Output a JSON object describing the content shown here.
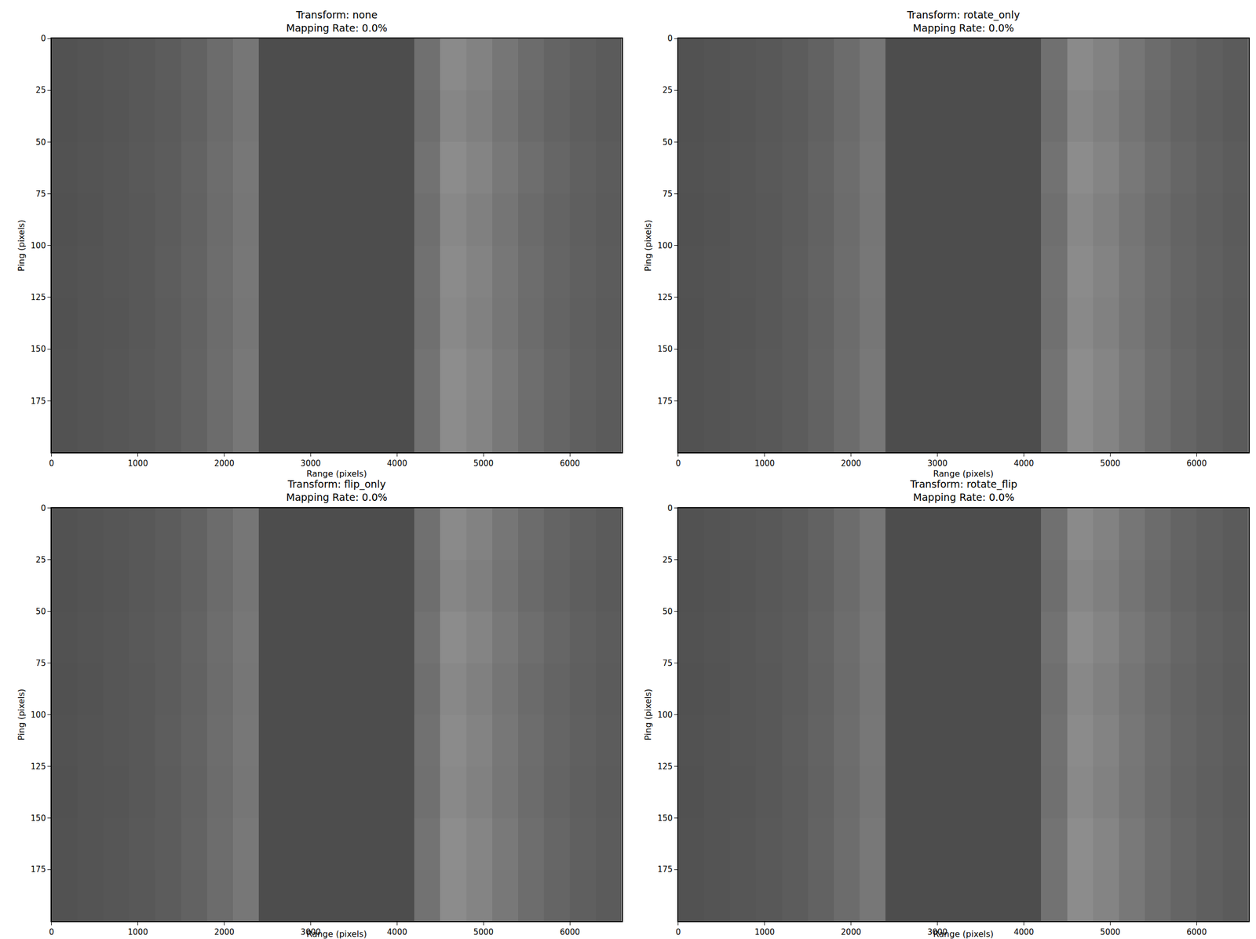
{
  "chart_data": [
    {
      "type": "heatmap",
      "title": "Transform: none\nMapping Rate: 0.0%",
      "x_label": "Range (pixels)",
      "y_label": "Ping (pixels)",
      "x_bins": [
        0,
        300,
        600,
        900,
        1200,
        1500,
        1800,
        2100,
        2400,
        2700,
        3000,
        3300,
        3600,
        3900,
        4200,
        4500,
        4800,
        5100,
        5400,
        5700,
        6000,
        6300,
        6600
      ],
      "y_bins": [
        0,
        25,
        50,
        75,
        100,
        125,
        150,
        175,
        200
      ],
      "z": [
        [
          82,
          84,
          86,
          88,
          92,
          98,
          108,
          118,
          77,
          77,
          77,
          77,
          77,
          77,
          112,
          138,
          130,
          118,
          108,
          100,
          95,
          91
        ],
        [
          81,
          83,
          85,
          88,
          91,
          97,
          107,
          117,
          77,
          77,
          77,
          77,
          77,
          77,
          110,
          134,
          127,
          116,
          106,
          99,
          94,
          90
        ],
        [
          82,
          84,
          86,
          89,
          92,
          99,
          109,
          119,
          77,
          77,
          77,
          77,
          77,
          77,
          114,
          140,
          132,
          120,
          110,
          102,
          96,
          92
        ],
        [
          81,
          83,
          86,
          88,
          92,
          98,
          108,
          118,
          77,
          77,
          77,
          77,
          77,
          77,
          111,
          136,
          128,
          117,
          107,
          100,
          95,
          91
        ],
        [
          82,
          84,
          86,
          88,
          93,
          99,
          109,
          119,
          77,
          77,
          77,
          77,
          77,
          77,
          113,
          139,
          131,
          119,
          109,
          101,
          96,
          92
        ],
        [
          81,
          84,
          85,
          88,
          92,
          98,
          108,
          118,
          77,
          77,
          77,
          77,
          77,
          77,
          112,
          137,
          129,
          118,
          108,
          100,
          95,
          91
        ],
        [
          82,
          84,
          86,
          89,
          92,
          99,
          109,
          120,
          77,
          77,
          77,
          77,
          77,
          77,
          115,
          141,
          133,
          121,
          110,
          102,
          96,
          92
        ],
        [
          82,
          84,
          86,
          88,
          92,
          98,
          108,
          119,
          77,
          77,
          77,
          77,
          77,
          77,
          114,
          140,
          132,
          120,
          109,
          101,
          95,
          91
        ]
      ],
      "zlim": [
        0,
        255
      ],
      "xlim": [
        0,
        6600
      ],
      "ylim": [
        200,
        0
      ],
      "xticks": [
        0,
        1000,
        2000,
        3000,
        4000,
        5000,
        6000
      ],
      "yticks": [
        0,
        25,
        50,
        75,
        100,
        125,
        150,
        175
      ]
    },
    {
      "type": "heatmap",
      "title": "Transform: rotate_only\nMapping Rate: 0.0%",
      "x_label": "Range (pixels)",
      "y_label": "Ping (pixels)",
      "x_bins": [
        0,
        300,
        600,
        900,
        1200,
        1500,
        1800,
        2100,
        2400,
        2700,
        3000,
        3300,
        3600,
        3900,
        4200,
        4500,
        4800,
        5100,
        5400,
        5700,
        6000,
        6300,
        6600
      ],
      "y_bins": [
        0,
        25,
        50,
        75,
        100,
        125,
        150,
        175,
        200
      ],
      "z": [
        [
          82,
          84,
          86,
          88,
          92,
          98,
          108,
          118,
          77,
          77,
          77,
          77,
          77,
          77,
          112,
          138,
          130,
          118,
          108,
          100,
          95,
          91
        ],
        [
          81,
          83,
          85,
          88,
          91,
          97,
          107,
          117,
          77,
          77,
          77,
          77,
          77,
          77,
          110,
          134,
          127,
          116,
          106,
          99,
          94,
          90
        ],
        [
          82,
          84,
          86,
          89,
          92,
          99,
          109,
          119,
          77,
          77,
          77,
          77,
          77,
          77,
          114,
          140,
          132,
          120,
          110,
          102,
          96,
          92
        ],
        [
          81,
          83,
          86,
          88,
          92,
          98,
          108,
          118,
          77,
          77,
          77,
          77,
          77,
          77,
          111,
          136,
          128,
          117,
          107,
          100,
          95,
          91
        ],
        [
          82,
          84,
          86,
          88,
          93,
          99,
          109,
          119,
          77,
          77,
          77,
          77,
          77,
          77,
          113,
          139,
          131,
          119,
          109,
          101,
          96,
          92
        ],
        [
          81,
          84,
          85,
          88,
          92,
          98,
          108,
          118,
          77,
          77,
          77,
          77,
          77,
          77,
          112,
          137,
          129,
          118,
          108,
          100,
          95,
          91
        ],
        [
          82,
          84,
          86,
          89,
          92,
          99,
          109,
          120,
          77,
          77,
          77,
          77,
          77,
          77,
          115,
          141,
          133,
          121,
          110,
          102,
          96,
          92
        ],
        [
          82,
          84,
          86,
          88,
          92,
          98,
          108,
          119,
          77,
          77,
          77,
          77,
          77,
          77,
          114,
          140,
          132,
          120,
          109,
          101,
          95,
          91
        ]
      ],
      "zlim": [
        0,
        255
      ],
      "xlim": [
        0,
        6600
      ],
      "ylim": [
        200,
        0
      ],
      "xticks": [
        0,
        1000,
        2000,
        3000,
        4000,
        5000,
        6000
      ],
      "yticks": [
        0,
        25,
        50,
        75,
        100,
        125,
        150,
        175
      ]
    },
    {
      "type": "heatmap",
      "title": "Transform: flip_only\nMapping Rate: 0.0%",
      "x_label": "Range (pixels)",
      "y_label": "Ping (pixels)",
      "x_bins": [
        0,
        300,
        600,
        900,
        1200,
        1500,
        1800,
        2100,
        2400,
        2700,
        3000,
        3300,
        3600,
        3900,
        4200,
        4500,
        4800,
        5100,
        5400,
        5700,
        6000,
        6300,
        6600
      ],
      "y_bins": [
        0,
        25,
        50,
        75,
        100,
        125,
        150,
        175,
        200
      ],
      "z": [
        [
          82,
          84,
          86,
          88,
          92,
          98,
          108,
          118,
          77,
          77,
          77,
          77,
          77,
          77,
          112,
          138,
          130,
          118,
          108,
          100,
          95,
          91
        ],
        [
          81,
          83,
          85,
          88,
          91,
          97,
          107,
          117,
          77,
          77,
          77,
          77,
          77,
          77,
          110,
          134,
          127,
          116,
          106,
          99,
          94,
          90
        ],
        [
          82,
          84,
          86,
          89,
          92,
          99,
          109,
          119,
          77,
          77,
          77,
          77,
          77,
          77,
          114,
          140,
          132,
          120,
          110,
          102,
          96,
          92
        ],
        [
          81,
          83,
          86,
          88,
          92,
          98,
          108,
          118,
          77,
          77,
          77,
          77,
          77,
          77,
          111,
          136,
          128,
          117,
          107,
          100,
          95,
          91
        ],
        [
          82,
          84,
          86,
          88,
          93,
          99,
          109,
          119,
          77,
          77,
          77,
          77,
          77,
          77,
          113,
          139,
          131,
          119,
          109,
          101,
          96,
          92
        ],
        [
          81,
          84,
          85,
          88,
          92,
          98,
          108,
          118,
          77,
          77,
          77,
          77,
          77,
          77,
          112,
          137,
          129,
          118,
          108,
          100,
          95,
          91
        ],
        [
          82,
          84,
          86,
          89,
          92,
          99,
          109,
          120,
          77,
          77,
          77,
          77,
          77,
          77,
          115,
          141,
          133,
          121,
          110,
          102,
          96,
          92
        ],
        [
          82,
          84,
          86,
          88,
          92,
          98,
          108,
          119,
          77,
          77,
          77,
          77,
          77,
          77,
          114,
          140,
          132,
          120,
          109,
          101,
          95,
          91
        ]
      ],
      "zlim": [
        0,
        255
      ],
      "xlim": [
        0,
        6600
      ],
      "ylim": [
        200,
        0
      ],
      "xticks": [
        0,
        1000,
        2000,
        3000,
        4000,
        5000,
        6000
      ],
      "yticks": [
        0,
        25,
        50,
        75,
        100,
        125,
        150,
        175
      ]
    },
    {
      "type": "heatmap",
      "title": "Transform: rotate_flip\nMapping Rate: 0.0%",
      "x_label": "Range (pixels)",
      "y_label": "Ping (pixels)",
      "x_bins": [
        0,
        300,
        600,
        900,
        1200,
        1500,
        1800,
        2100,
        2400,
        2700,
        3000,
        3300,
        3600,
        3900,
        4200,
        4500,
        4800,
        5100,
        5400,
        5700,
        6000,
        6300,
        6600
      ],
      "y_bins": [
        0,
        25,
        50,
        75,
        100,
        125,
        150,
        175,
        200
      ],
      "z": [
        [
          82,
          84,
          86,
          88,
          92,
          98,
          108,
          118,
          77,
          77,
          77,
          77,
          77,
          77,
          112,
          138,
          130,
          118,
          108,
          100,
          95,
          91
        ],
        [
          81,
          83,
          85,
          88,
          91,
          97,
          107,
          117,
          77,
          77,
          77,
          77,
          77,
          77,
          110,
          134,
          127,
          116,
          106,
          99,
          94,
          90
        ],
        [
          82,
          84,
          86,
          89,
          92,
          99,
          109,
          119,
          77,
          77,
          77,
          77,
          77,
          77,
          114,
          140,
          132,
          120,
          110,
          102,
          96,
          92
        ],
        [
          81,
          83,
          86,
          88,
          92,
          98,
          108,
          118,
          77,
          77,
          77,
          77,
          77,
          77,
          111,
          136,
          128,
          117,
          107,
          100,
          95,
          91
        ],
        [
          82,
          84,
          86,
          88,
          93,
          99,
          109,
          119,
          77,
          77,
          77,
          77,
          77,
          77,
          113,
          139,
          131,
          119,
          109,
          101,
          96,
          92
        ],
        [
          81,
          84,
          85,
          88,
          92,
          98,
          108,
          118,
          77,
          77,
          77,
          77,
          77,
          77,
          112,
          137,
          129,
          118,
          108,
          100,
          95,
          91
        ],
        [
          82,
          84,
          86,
          89,
          92,
          99,
          109,
          120,
          77,
          77,
          77,
          77,
          77,
          77,
          115,
          141,
          133,
          121,
          110,
          102,
          96,
          92
        ],
        [
          82,
          84,
          86,
          88,
          92,
          98,
          108,
          119,
          77,
          77,
          77,
          77,
          77,
          77,
          114,
          140,
          132,
          120,
          109,
          101,
          95,
          91
        ]
      ],
      "zlim": [
        0,
        255
      ],
      "xlim": [
        0,
        6600
      ],
      "ylim": [
        200,
        0
      ],
      "xticks": [
        0,
        1000,
        2000,
        3000,
        4000,
        5000,
        6000
      ],
      "yticks": [
        0,
        25,
        50,
        75,
        100,
        125,
        150,
        175
      ]
    }
  ]
}
